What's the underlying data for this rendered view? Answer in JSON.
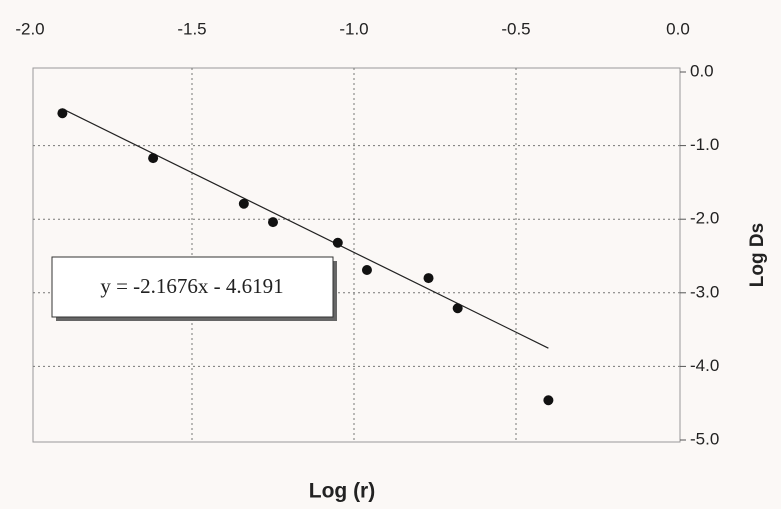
{
  "chart_data": {
    "type": "scatter",
    "x_label": "Log (r)",
    "y_label": "Log Ds",
    "x": [
      -1.9,
      -1.62,
      -1.34,
      -1.25,
      -1.05,
      -0.96,
      -0.77,
      -0.68,
      -0.4
    ],
    "series": [
      {
        "color": "#111111",
        "values": [
          -0.56,
          -1.17,
          -1.79,
          -2.04,
          -2.32,
          -2.69,
          -2.8,
          -3.21,
          -4.46
        ]
      }
    ],
    "trendline": {
      "slope": -2.1676,
      "intercept": -4.6191,
      "equation": "y = -2.1676x - 4.6191",
      "color": "#222222"
    },
    "xlim": [
      -2,
      0
    ],
    "xticks": [
      {
        "value": -2,
        "label": "-2.0"
      },
      {
        "value": -1.5,
        "label": "-1.5"
      },
      {
        "value": -1,
        "label": "-1.0"
      },
      {
        "value": -0.5,
        "label": "-0.5"
      },
      {
        "value": 0,
        "label": "0.0"
      }
    ],
    "ylim": [
      -5,
      0
    ],
    "yticks": [
      {
        "value": 0,
        "label": "0.0"
      },
      {
        "value": -1,
        "label": "-1.0"
      },
      {
        "value": -2,
        "label": "-2.0"
      },
      {
        "value": -3,
        "label": "-3.0"
      },
      {
        "value": -4,
        "label": "-4.0"
      },
      {
        "value": -5,
        "label": "-5.0"
      }
    ],
    "grid": true
  }
}
